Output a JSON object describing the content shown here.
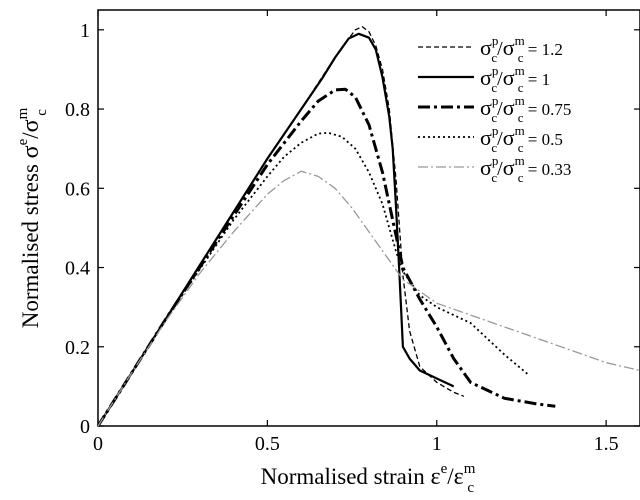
{
  "chart_data": {
    "type": "line",
    "title": "",
    "xlabel": {
      "text": "Normalised strain",
      "symbol": "ε",
      "sup": "e",
      "over": "ε",
      "over_sub": "c",
      "over_sup": "m"
    },
    "ylabel": {
      "text": "Normalised stress",
      "symbol": "σ",
      "sup": "e",
      "over": "σ",
      "over_sub": "c",
      "over_sup": "m"
    },
    "xlim": [
      0,
      1.6
    ],
    "ylim": [
      0,
      1.05
    ],
    "xticks": [
      0,
      0.5,
      1,
      1.5
    ],
    "xtick_labels": [
      "0",
      "0.5",
      "1",
      "1.5"
    ],
    "yticks": [
      0,
      0.2,
      0.4,
      0.6,
      0.8,
      1
    ],
    "ytick_labels": [
      "0",
      "0.2",
      "0.4",
      "0.6",
      "0.8",
      "1"
    ],
    "grid": false,
    "legend_position": "top-right",
    "legend_prefix": {
      "s1": "σ",
      "s1_sub": "c",
      "s1_sup": "p",
      "slash": "/",
      "s2": "σ",
      "s2_sub": "c",
      "s2_sup": "m",
      "eq": " = "
    },
    "series": [
      {
        "name": "1.2",
        "style": "dashed",
        "color": "#000000",
        "x": [
          0,
          0.1,
          0.2,
          0.3,
          0.4,
          0.5,
          0.6,
          0.68,
          0.72,
          0.76,
          0.78,
          0.8,
          0.82,
          0.84,
          0.86,
          0.88,
          0.9,
          0.92,
          0.95,
          1.0,
          1.05,
          1.08
        ],
        "y": [
          0,
          0.135,
          0.27,
          0.405,
          0.54,
          0.675,
          0.8,
          0.905,
          0.955,
          1.0,
          1.008,
          0.995,
          0.96,
          0.9,
          0.8,
          0.62,
          0.38,
          0.24,
          0.15,
          0.11,
          0.085,
          0.075
        ]
      },
      {
        "name": "1",
        "style": "solid",
        "color": "#000000",
        "x": [
          0,
          0.1,
          0.2,
          0.3,
          0.4,
          0.5,
          0.6,
          0.66,
          0.7,
          0.74,
          0.77,
          0.8,
          0.82,
          0.84,
          0.86,
          0.87,
          0.88,
          0.89,
          0.9,
          0.92,
          0.95,
          1.0,
          1.05
        ],
        "y": [
          0,
          0.135,
          0.27,
          0.405,
          0.54,
          0.675,
          0.8,
          0.875,
          0.93,
          0.978,
          0.99,
          0.98,
          0.95,
          0.88,
          0.78,
          0.7,
          0.55,
          0.38,
          0.2,
          0.17,
          0.14,
          0.12,
          0.1
        ]
      },
      {
        "name": "0.75",
        "style": "dashdot",
        "color": "#000000",
        "x": [
          0,
          0.1,
          0.2,
          0.3,
          0.4,
          0.5,
          0.6,
          0.65,
          0.7,
          0.73,
          0.76,
          0.8,
          0.84,
          0.87,
          0.9,
          0.95,
          1.0,
          1.05,
          1.1,
          1.2,
          1.3,
          1.35
        ],
        "y": [
          0,
          0.135,
          0.27,
          0.4,
          0.53,
          0.66,
          0.77,
          0.82,
          0.848,
          0.85,
          0.83,
          0.76,
          0.64,
          0.52,
          0.4,
          0.32,
          0.25,
          0.17,
          0.11,
          0.07,
          0.055,
          0.05
        ]
      },
      {
        "name": "0.5",
        "style": "dotted",
        "color": "#000000",
        "x": [
          0,
          0.1,
          0.2,
          0.3,
          0.4,
          0.5,
          0.55,
          0.6,
          0.65,
          0.68,
          0.72,
          0.76,
          0.8,
          0.84,
          0.88,
          0.9,
          0.95,
          1.0,
          1.05,
          1.1,
          1.2,
          1.27
        ],
        "y": [
          0,
          0.135,
          0.27,
          0.395,
          0.52,
          0.63,
          0.68,
          0.715,
          0.738,
          0.74,
          0.73,
          0.7,
          0.64,
          0.56,
          0.44,
          0.39,
          0.33,
          0.3,
          0.28,
          0.26,
          0.18,
          0.13
        ]
      },
      {
        "name": "0.33",
        "style": "dashdot-thin",
        "color": "#999999",
        "x": [
          0,
          0.1,
          0.2,
          0.3,
          0.4,
          0.5,
          0.55,
          0.6,
          0.65,
          0.7,
          0.75,
          0.8,
          0.85,
          0.9,
          0.95,
          1.0,
          1.1,
          1.2,
          1.3,
          1.4,
          1.5,
          1.6
        ],
        "y": [
          0,
          0.135,
          0.265,
          0.385,
          0.49,
          0.585,
          0.62,
          0.643,
          0.63,
          0.6,
          0.55,
          0.49,
          0.43,
          0.37,
          0.34,
          0.31,
          0.28,
          0.25,
          0.22,
          0.19,
          0.16,
          0.14
        ]
      }
    ]
  }
}
